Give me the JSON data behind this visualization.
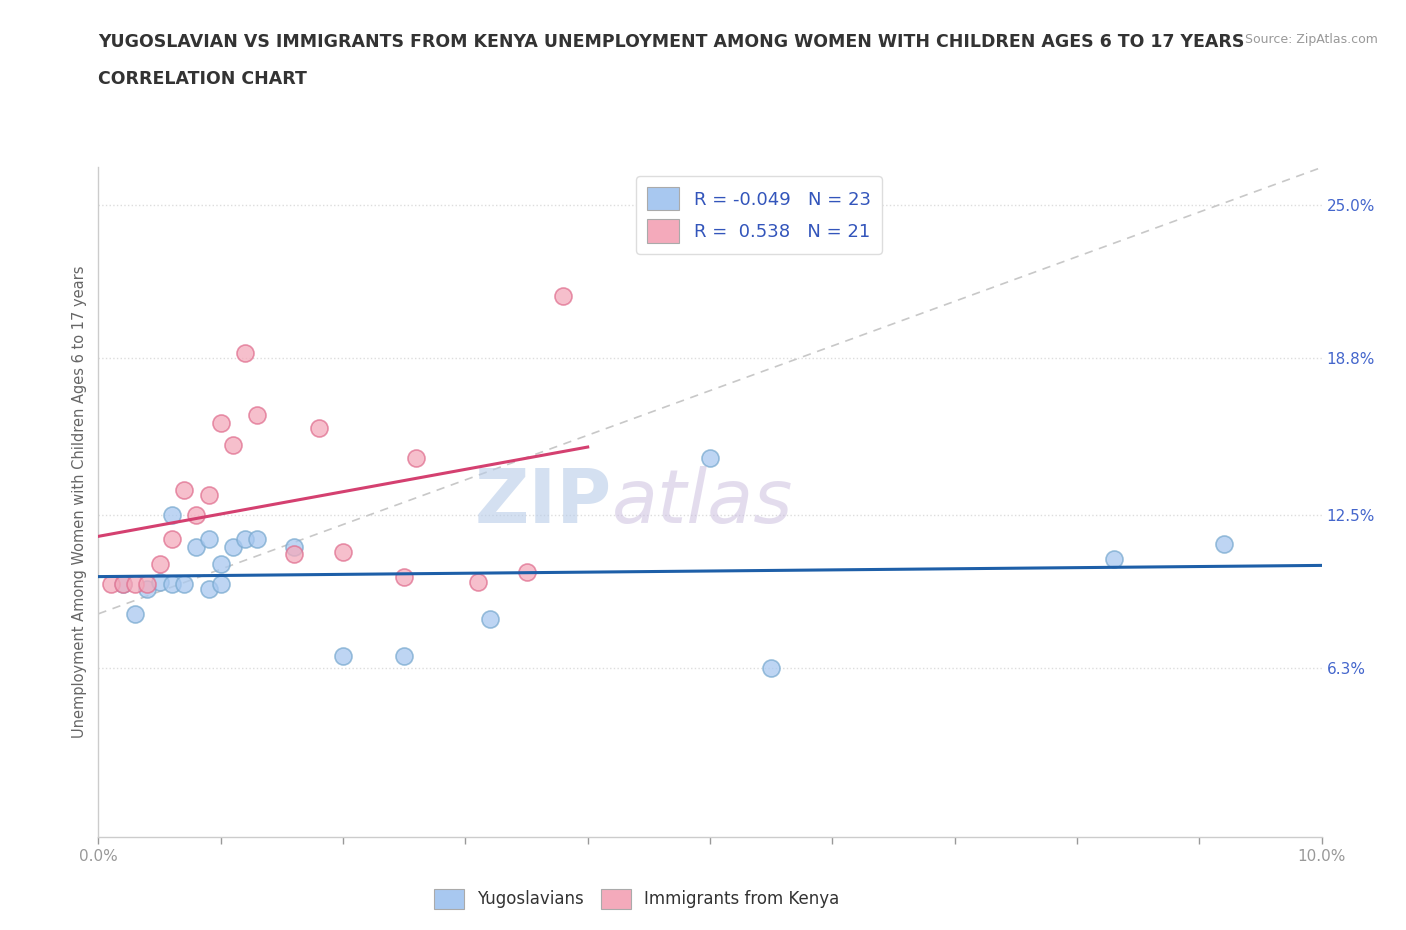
{
  "title_line1": "YUGOSLAVIAN VS IMMIGRANTS FROM KENYA UNEMPLOYMENT AMONG WOMEN WITH CHILDREN AGES 6 TO 17 YEARS",
  "title_line2": "CORRELATION CHART",
  "source_text": "Source: ZipAtlas.com",
  "ylabel": "Unemployment Among Women with Children Ages 6 to 17 years",
  "xlim": [
    0.0,
    0.1
  ],
  "ylim": [
    -0.005,
    0.265
  ],
  "ytick_positions_right": [
    0.25,
    0.188,
    0.125,
    0.063
  ],
  "ytick_labels_right": [
    "25.0%",
    "18.8%",
    "12.5%",
    "6.3%"
  ],
  "watermark_zip": "ZIP",
  "watermark_atlas": "atlas",
  "blue_color": "#A8C8F0",
  "pink_color": "#F4AABB",
  "blue_edge_color": "#7AAAD0",
  "pink_edge_color": "#E07090",
  "blue_line_color": "#1E5FA8",
  "pink_line_color": "#D44070",
  "diag_line_color": "#C8C8C8",
  "grid_color": "#DDDDDD",
  "scatter_size": 150,
  "title_color": "#333333",
  "source_color": "#999999",
  "ylabel_color": "#666666",
  "tick_color": "#999999",
  "right_tick_color": "#4466CC",
  "yugoslavian_x": [
    0.002,
    0.003,
    0.004,
    0.005,
    0.006,
    0.006,
    0.007,
    0.008,
    0.009,
    0.009,
    0.01,
    0.01,
    0.011,
    0.012,
    0.013,
    0.016,
    0.02,
    0.025,
    0.032,
    0.05,
    0.055,
    0.083,
    0.092
  ],
  "yugoslavian_y": [
    0.097,
    0.085,
    0.095,
    0.098,
    0.125,
    0.097,
    0.097,
    0.112,
    0.115,
    0.095,
    0.105,
    0.097,
    0.112,
    0.115,
    0.115,
    0.112,
    0.068,
    0.068,
    0.083,
    0.148,
    0.063,
    0.107,
    0.113
  ],
  "kenya_x": [
    0.001,
    0.002,
    0.003,
    0.004,
    0.005,
    0.006,
    0.007,
    0.008,
    0.009,
    0.01,
    0.011,
    0.012,
    0.013,
    0.016,
    0.018,
    0.02,
    0.025,
    0.026,
    0.031,
    0.035,
    0.038
  ],
  "kenya_y": [
    0.097,
    0.097,
    0.097,
    0.097,
    0.105,
    0.115,
    0.135,
    0.125,
    0.133,
    0.162,
    0.153,
    0.19,
    0.165,
    0.109,
    0.16,
    0.11,
    0.1,
    0.148,
    0.098,
    0.102,
    0.213
  ],
  "kenya_trendline_x": [
    0.0,
    0.04
  ],
  "bottom_legend_labels": [
    "Yugoslavians",
    "Immigrants from Kenya"
  ],
  "legend_text_1": "R = -0.049   N = 23",
  "legend_text_2": "R =  0.538   N = 21"
}
